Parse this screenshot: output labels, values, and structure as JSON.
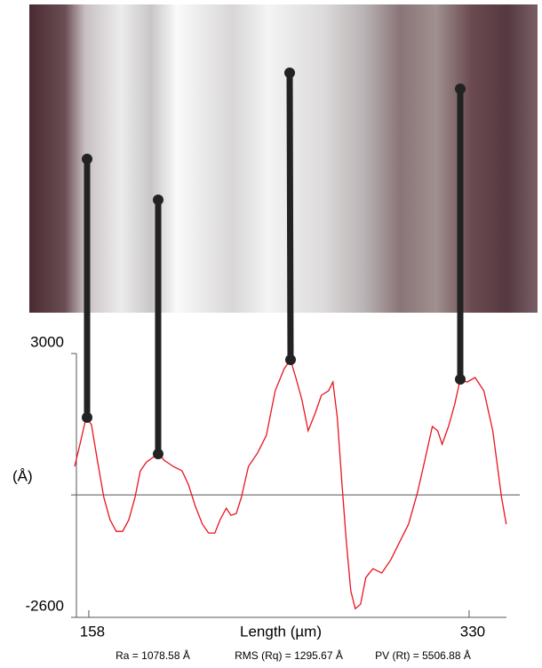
{
  "chart_data": {
    "type": "line",
    "xlabel": "Length (µm)",
    "ylabel": "(Å)",
    "x": [
      151.6,
      154.0,
      156.8,
      159.2,
      162.0,
      164.8,
      167.6,
      170.4,
      173.3,
      176.1,
      178.9,
      181.3,
      184.1,
      186.9,
      189.3,
      192.1,
      196.2,
      200.2,
      203.0,
      206.2,
      209.4,
      212.2,
      215.0,
      217.4,
      220.2,
      222.3,
      224.7,
      227.0,
      230.2,
      234.3,
      238.3,
      242.3,
      246.4,
      249.2,
      251.6,
      254.4,
      257.2,
      260.4,
      263.2,
      266.4,
      268.4,
      270.4,
      272.5,
      274.5,
      276.5,
      278.5,
      280.9,
      283.3,
      286.5,
      290.5,
      294.6,
      298.6,
      302.6,
      306.6,
      309.8,
      313.4,
      315.8,
      317.8,
      320.7,
      323.5,
      325.9,
      329.1,
      332.7,
      336.7,
      340.7,
      344.7,
      346.8
    ],
    "values": [
      604,
      1075,
      1642,
      1491,
      698,
      -57,
      -528,
      -774,
      -774,
      -528,
      -57,
      509,
      698,
      792,
      887,
      736,
      604,
      509,
      226,
      -245,
      -623,
      -811,
      -811,
      -528,
      -283,
      -434,
      -396,
      -57,
      604,
      887,
      1264,
      2208,
      2679,
      2868,
      2491,
      2019,
      1359,
      1736,
      2113,
      2208,
      2396,
      1642,
      226,
      -1000,
      -2038,
      -2415,
      -2321,
      -1755,
      -1566,
      -1660,
      -1377,
      -1000,
      -623,
      38,
      698,
      1453,
      1359,
      1075,
      1453,
      1925,
      2434,
      2396,
      2491,
      2208,
      1359,
      -57,
      -623
    ],
    "color": "#e8141e",
    "xlim": [
      152.4,
      346.9
    ],
    "ylim": [
      -2600,
      3000
    ],
    "xticks": [
      158,
      330
    ],
    "yticks": [
      -2600,
      3000
    ],
    "zero_line": true,
    "stats": [
      "Ra = 1078.58 Å",
      "RMS (Rq) = 1295.67 Å",
      "PV (Rt) = 5506.88 Å"
    ]
  }
}
